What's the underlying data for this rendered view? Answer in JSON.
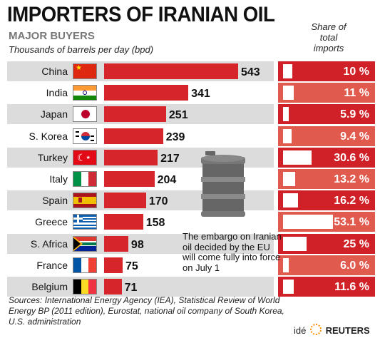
{
  "header": {
    "title": "IMPORTERS OF IRANIAN OIL",
    "subtitle": "MAJOR BUYERS",
    "units": "Thousands of barrels per day (bpd)",
    "share_header": [
      "Share of",
      "total",
      "imports"
    ]
  },
  "chart_data": {
    "type": "bar",
    "orientation": "horizontal",
    "categories": [
      "China",
      "India",
      "Japan",
      "S. Korea",
      "Turkey",
      "Italy",
      "Spain",
      "Greece",
      "S. Africa",
      "France",
      "Belgium"
    ],
    "series": [
      {
        "values": [
          543,
          341,
          251,
          239,
          217,
          204,
          170,
          158,
          98,
          75,
          71
        ]
      },
      {
        "values": [
          10,
          11,
          5.9,
          9.4,
          30.6,
          13.2,
          16.2,
          53.1,
          25,
          6.0,
          11.6
        ]
      }
    ],
    "value_labels": [
      "543",
      "341",
      "251",
      "239",
      "217",
      "204",
      "170",
      "158",
      "98",
      "75",
      "71"
    ],
    "share_labels": [
      "10 %",
      "11 %",
      "5.9 %",
      "9.4 %",
      "30.6 %",
      "13.2 %",
      "16.2 %",
      "53.1 %",
      "25 %",
      "6.0 %",
      "11.6 %"
    ],
    "colors": {
      "bar": "#d7262b",
      "share_dark": "#cf2127",
      "share_light": "#e05a4e",
      "row_alt": "#dcdcdc"
    }
  },
  "flags": [
    "china-flag",
    "india-flag",
    "japan-flag",
    "south-korea-flag",
    "turkey-flag",
    "italy-flag",
    "spain-flag",
    "greece-flag",
    "south-africa-flag",
    "france-flag",
    "belgium-flag"
  ],
  "note": "The embargo on Iranian oil decided by the EU will come fully into force on July 1",
  "sources": "Sources: International Energy Agency (IEA), Statistical Review of World Energy BP (2011 edition), Eurostat, national oil company of South Korea, U.S. administration",
  "credit": {
    "left": "idé",
    "right": "REUTERS"
  }
}
